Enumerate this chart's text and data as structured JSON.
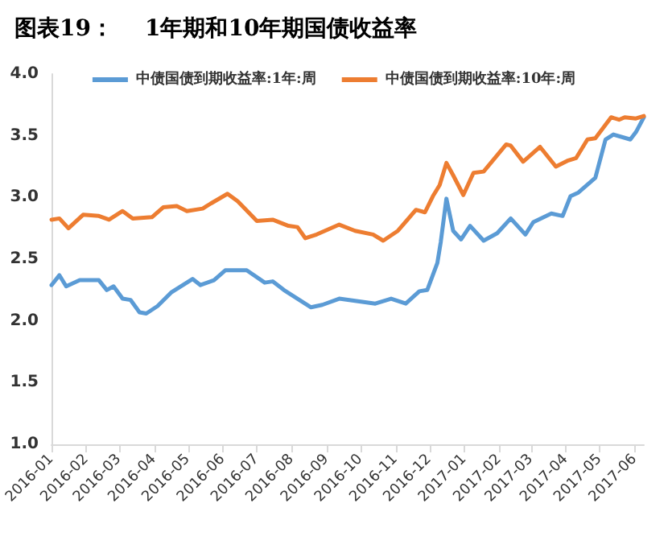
{
  "chart_data": {
    "type": "line",
    "title": "图表19：    1年期和10年期国债收益率",
    "series": [
      {
        "name": "中债国债到期收益率:1年:周",
        "color": "#5b9bd5",
        "x": [
          "2016-01-01",
          "2016-01-08",
          "2016-01-14",
          "2016-01-26",
          "2016-02-12",
          "2016-02-19",
          "2016-02-25",
          "2016-03-04",
          "2016-03-11",
          "2016-03-19",
          "2016-03-25",
          "2016-04-04",
          "2016-04-16",
          "2016-05-05",
          "2016-05-12",
          "2016-05-24",
          "2016-06-03",
          "2016-06-22",
          "2016-07-08",
          "2016-07-15",
          "2016-07-25",
          "2016-08-18",
          "2016-08-28",
          "2016-09-12",
          "2016-10-14",
          "2016-10-28",
          "2016-11-10",
          "2016-11-22",
          "2016-11-29",
          "2016-12-08",
          "2016-12-11",
          "2016-12-16",
          "2016-12-22",
          "2016-12-29",
          "2017-01-06",
          "2017-01-18",
          "2017-01-30",
          "2017-02-11",
          "2017-02-24",
          "2017-03-03",
          "2017-03-19",
          "2017-03-29",
          "2017-04-05",
          "2017-04-12",
          "2017-04-27",
          "2017-05-06",
          "2017-05-13",
          "2017-05-28",
          "2017-06-02",
          "2017-06-09"
        ],
        "values": [
          2.29,
          2.37,
          2.28,
          2.33,
          2.33,
          2.25,
          2.28,
          2.18,
          2.17,
          2.07,
          2.06,
          2.12,
          2.23,
          2.34,
          2.29,
          2.33,
          2.41,
          2.41,
          2.31,
          2.32,
          2.25,
          2.11,
          2.13,
          2.18,
          2.14,
          2.18,
          2.14,
          2.24,
          2.25,
          2.47,
          2.64,
          2.99,
          2.73,
          2.66,
          2.77,
          2.65,
          2.71,
          2.83,
          2.7,
          2.8,
          2.87,
          2.85,
          3.01,
          3.04,
          3.16,
          3.47,
          3.51,
          3.47,
          3.53,
          3.65
        ]
      },
      {
        "name": "中债国债到期收益率:10年:周",
        "color": "#ed7d31",
        "x": [
          "2016-01-01",
          "2016-01-08",
          "2016-01-16",
          "2016-01-29",
          "2016-02-12",
          "2016-02-21",
          "2016-03-04",
          "2016-03-13",
          "2016-03-30",
          "2016-04-09",
          "2016-04-21",
          "2016-04-30",
          "2016-05-14",
          "2016-05-21",
          "2016-06-05",
          "2016-06-14",
          "2016-07-01",
          "2016-07-15",
          "2016-07-29",
          "2016-08-06",
          "2016-08-13",
          "2016-08-23",
          "2016-09-12",
          "2016-09-26",
          "2016-10-12",
          "2016-10-21",
          "2016-11-03",
          "2016-11-19",
          "2016-11-27",
          "2016-12-04",
          "2016-12-10",
          "2016-12-16",
          "2016-12-22",
          "2016-12-31",
          "2017-01-09",
          "2017-01-18",
          "2017-02-07",
          "2017-02-11",
          "2017-02-22",
          "2017-03-09",
          "2017-03-23",
          "2017-04-03",
          "2017-04-10",
          "2017-04-20",
          "2017-04-27",
          "2017-05-11",
          "2017-05-18",
          "2017-05-23",
          "2017-06-02",
          "2017-06-09"
        ],
        "values": [
          2.82,
          2.83,
          2.75,
          2.86,
          2.85,
          2.82,
          2.89,
          2.83,
          2.84,
          2.92,
          2.93,
          2.89,
          2.91,
          2.95,
          3.03,
          2.97,
          2.81,
          2.82,
          2.77,
          2.76,
          2.67,
          2.7,
          2.78,
          2.73,
          2.7,
          2.65,
          2.73,
          2.9,
          2.88,
          3.01,
          3.1,
          3.28,
          3.18,
          3.02,
          3.2,
          3.21,
          3.43,
          3.42,
          3.29,
          3.41,
          3.25,
          3.3,
          3.32,
          3.47,
          3.48,
          3.65,
          3.63,
          3.65,
          3.64,
          3.66
        ]
      }
    ],
    "xlim": [
      "2016-01-01",
      "2017-06-09"
    ],
    "xticks": [
      "2016-01",
      "2016-02",
      "2016-03",
      "2016-04",
      "2016-05",
      "2016-06",
      "2016-07",
      "2016-08",
      "2016-09",
      "2016-10",
      "2016-11",
      "2016-12",
      "2017-01",
      "2017-02",
      "2017-03",
      "2017-04",
      "2017-05",
      "2017-06"
    ],
    "ylim": [
      1.0,
      4.0
    ],
    "yticks": [
      {
        "value": 1.0,
        "label": "1.0"
      },
      {
        "value": 1.5,
        "label": "1.5"
      },
      {
        "value": 2.0,
        "label": "2.0"
      },
      {
        "value": 2.5,
        "label": "2.5"
      },
      {
        "value": 3.0,
        "label": "3.0"
      },
      {
        "value": 3.5,
        "label": "3.5"
      },
      {
        "value": 4.0,
        "label": "4.0"
      }
    ],
    "grid": false,
    "legend": "top",
    "marker": "none",
    "line_style": "solid"
  }
}
